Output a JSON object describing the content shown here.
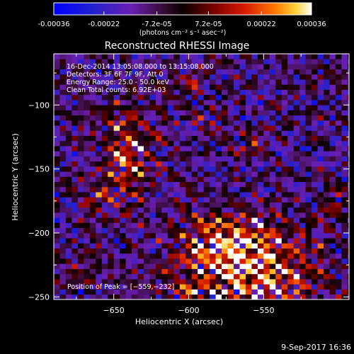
{
  "colorbar": {
    "ticks": [
      {
        "value": -0.00036,
        "label": "-0.00036"
      },
      {
        "value": -0.00022,
        "label": "-0.00022"
      },
      {
        "value": -7.2e-05,
        "label": "-7.2e-05"
      },
      {
        "value": 7.2e-05,
        "label": "7.2e-05"
      },
      {
        "value": 0.00022,
        "label": "0.00022"
      },
      {
        "value": 0.00036,
        "label": "0.00036"
      }
    ],
    "range": [
      -0.00036,
      0.00036
    ],
    "unit_label": "(photons cm⁻² s⁻¹ asec⁻²)"
  },
  "chart_data": {
    "type": "heatmap",
    "title": "Reconstructed RHESSI Image",
    "xlabel": "Heliocentric X (arcsec)",
    "ylabel": "Heliocentric Y (arcsec)",
    "xlim": [
      -690,
      -493
    ],
    "ylim": [
      -252,
      -60
    ],
    "xticks": [
      {
        "value": -650,
        "label": "−650"
      },
      {
        "value": -600,
        "label": "−600"
      },
      {
        "value": -550,
        "label": "−550"
      }
    ],
    "yticks": [
      {
        "value": -100,
        "label": "−100"
      },
      {
        "value": -150,
        "label": "−150"
      },
      {
        "value": -200,
        "label": "−200"
      },
      {
        "value": -250,
        "label": "−250"
      }
    ],
    "annotations": [
      "16-Dec-2014 13:05:08.000 to 13:15:08.000",
      "Detectors: 3F 6F 7F 9F, Att 0",
      "Energy Range: 25.0 - 50.0 keV",
      "Clean     Total counts: 6.92E+03"
    ],
    "peak_label": "Position of Peak = [−559,−232]",
    "peak": [
      -559,
      -232
    ],
    "sources": [
      {
        "x": -640,
        "y": -135,
        "amp": 1.0,
        "sx": 12,
        "sy": 22
      },
      {
        "x": -660,
        "y": -170,
        "amp": 0.55,
        "sx": 10,
        "sy": 12
      },
      {
        "x": -559,
        "y": -232,
        "amp": 1.35,
        "sx": 30,
        "sy": 22
      },
      {
        "x": -575,
        "y": -205,
        "amp": 0.9,
        "sx": 24,
        "sy": 14
      },
      {
        "x": -600,
        "y": -85,
        "amp": 0.5,
        "sx": 10,
        "sy": 8
      },
      {
        "x": -560,
        "y": -130,
        "amp": 0.45,
        "sx": 9,
        "sy": 9
      },
      {
        "x": -585,
        "y": -115,
        "amp": 0.4,
        "sx": 10,
        "sy": 8
      },
      {
        "x": -505,
        "y": -180,
        "amp": 0.45,
        "sx": 8,
        "sy": 10
      },
      {
        "x": -600,
        "y": -245,
        "amp": 0.4,
        "sx": 10,
        "sy": 6
      },
      {
        "x": -670,
        "y": -225,
        "amp": 0.35,
        "sx": 10,
        "sy": 10
      }
    ]
  },
  "footer": {
    "timestamp": "9-Sep-2017 16:36"
  }
}
